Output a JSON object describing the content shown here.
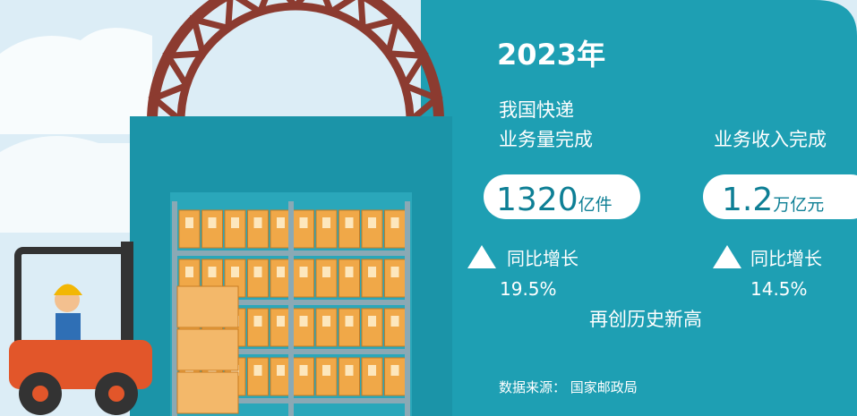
{
  "year": "2023年",
  "volume": {
    "label_line1": "我国快递",
    "label_line2": "业务量完成",
    "value": "1320",
    "unit": "亿件",
    "growth_label": "同比增长",
    "growth": "19.5%"
  },
  "revenue": {
    "label": "业务收入完成",
    "value": "1.2",
    "unit": "万亿元",
    "growth_label": "同比增长",
    "growth": "14.5%"
  },
  "highlight": "再创历史新高",
  "source": "数据来源： 国家邮政局"
}
